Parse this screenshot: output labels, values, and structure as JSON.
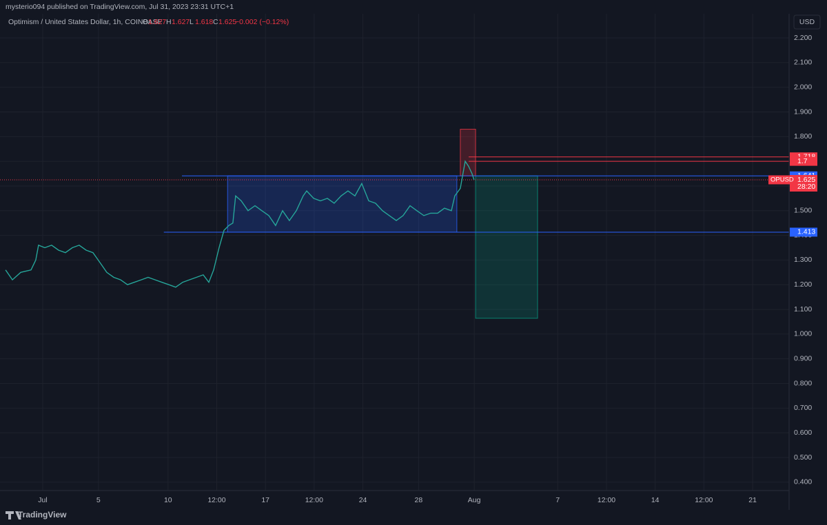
{
  "header": {
    "publisher": "mysterio094 published on TradingView.com, Jul 31, 2023 23:31 UTC+1",
    "symbol": "Optimism / United States Dollar, 1h, COINBASE",
    "ohlc": [
      {
        "label": "O",
        "value": 1.627
      },
      {
        "label": "H",
        "value": 1.627
      },
      {
        "label": "L",
        "value": 1.618
      },
      {
        "label": "C",
        "value": 1.625
      }
    ],
    "change": "−0.002 (−0.12%)",
    "currency": "USD"
  },
  "footer": {
    "brand": "TradingView"
  },
  "chart_data": {
    "type": "line",
    "series": [
      {
        "name": "OPUSD",
        "color": "#26a69a",
        "x": [
          -1.67,
          -1.18,
          -0.58,
          0.16,
          0.5,
          0.7,
          1.15,
          1.64,
          2.14,
          2.63,
          3.13,
          3.62,
          4.12,
          4.61,
          5.11,
          5.6,
          6.1,
          6.59,
          7.09,
          7.58,
          8.08,
          8.57,
          9.07,
          9.56,
          10.06,
          10.55,
          11.05,
          11.54,
          12.04,
          12.53,
          12.93,
          13.28,
          13.67,
          14.02,
          14.37,
          14.66,
          14.86,
          15.26,
          15.75,
          16.25,
          16.74,
          17.24,
          17.73,
          18.23,
          18.72,
          19.22,
          19.71,
          19.96,
          20.46,
          20.95,
          21.45,
          21.94,
          22.44,
          22.93,
          23.43,
          23.92,
          24.42,
          24.91,
          25.41,
          25.9,
          26.4,
          26.89,
          27.39,
          27.88,
          28.38,
          28.87,
          29.37,
          29.86,
          30.36,
          30.6,
          31.0,
          31.35,
          31.59,
          31.84,
          31.99
        ],
        "values": [
          1.26,
          1.22,
          1.25,
          1.26,
          1.3,
          1.36,
          1.35,
          1.36,
          1.34,
          1.33,
          1.35,
          1.36,
          1.34,
          1.33,
          1.29,
          1.25,
          1.23,
          1.22,
          1.2,
          1.21,
          1.22,
          1.23,
          1.22,
          1.21,
          1.2,
          1.19,
          1.21,
          1.22,
          1.23,
          1.24,
          1.21,
          1.26,
          1.35,
          1.42,
          1.44,
          1.45,
          1.56,
          1.54,
          1.5,
          1.52,
          1.5,
          1.48,
          1.44,
          1.5,
          1.46,
          1.5,
          1.56,
          1.58,
          1.55,
          1.54,
          1.55,
          1.53,
          1.56,
          1.58,
          1.56,
          1.61,
          1.54,
          1.53,
          1.5,
          1.48,
          1.46,
          1.48,
          1.52,
          1.5,
          1.48,
          1.49,
          1.49,
          1.51,
          1.5,
          1.56,
          1.59,
          1.7,
          1.68,
          1.65,
          1.625
        ]
      }
    ],
    "levels": [
      {
        "value": 1.718,
        "color": "#f23645",
        "from": 31.6
      },
      {
        "value": 1.7,
        "color": "#f23645",
        "from": 31.6
      },
      {
        "value": 1.641,
        "color": "#2962ff",
        "from": 11.0
      },
      {
        "value": 1.625,
        "color": "#f23645",
        "name": "OPUSD",
        "countdown": "28:20",
        "dotted": true
      },
      {
        "value": 1.413,
        "color": "#2962ff",
        "from": 9.7
      }
    ],
    "boxes": [
      {
        "x": [
          14.28,
          30.75
        ],
        "y": [
          1.413,
          1.641
        ],
        "color": "#2962ff"
      },
      {
        "x": [
          31.0,
          32.1
        ],
        "y": [
          1.641,
          1.83
        ],
        "color": "#f23645"
      },
      {
        "x": [
          32.1,
          36.55
        ],
        "y": [
          1.064,
          1.641
        ],
        "color": "#089981"
      }
    ],
    "xlim": [
      -2.07,
      54.62
    ],
    "xticks": [
      {
        "value": 1,
        "label": "Jul"
      },
      5,
      10,
      {
        "value": 13.5,
        "label": "12:00"
      },
      17,
      {
        "value": 20.5,
        "label": "12:00"
      },
      24,
      28,
      {
        "value": 32,
        "label": "Aug"
      },
      {
        "value": 38,
        "label": "7"
      },
      {
        "value": 41.5,
        "label": "12:00"
      },
      {
        "value": 45,
        "label": "14"
      },
      {
        "value": 48.5,
        "label": "12:00"
      },
      {
        "value": 52,
        "label": "21"
      }
    ],
    "ylim": [
      0.366,
      2.228
    ],
    "yticks": [
      {
        "value": 0.4,
        "label": "0.400"
      },
      {
        "value": 0.5,
        "label": "0.500"
      },
      {
        "value": 0.6,
        "label": "0.600"
      },
      {
        "value": 0.7,
        "label": "0.700"
      },
      {
        "value": 0.8,
        "label": "0.800"
      },
      {
        "value": 0.9,
        "label": "0.900"
      },
      {
        "value": 1.0,
        "label": "1.000"
      },
      {
        "value": 1.1,
        "label": "1.100"
      },
      {
        "value": 1.2,
        "label": "1.200"
      },
      {
        "value": 1.3,
        "label": "1.300"
      },
      {
        "value": 1.4,
        "label": "1.400"
      },
      {
        "value": 1.5,
        "label": "1.500"
      },
      {
        "value": 1.6,
        "label": "1.600"
      },
      {
        "value": 1.7,
        "label": "1.700"
      },
      {
        "value": 1.8,
        "label": "1.800"
      },
      {
        "value": 1.9,
        "label": "1.900"
      },
      {
        "value": 2.0,
        "label": "2.000"
      },
      {
        "value": 2.1,
        "label": "2.100"
      },
      {
        "value": 2.2,
        "label": "2.200"
      }
    ],
    "grid": true
  }
}
